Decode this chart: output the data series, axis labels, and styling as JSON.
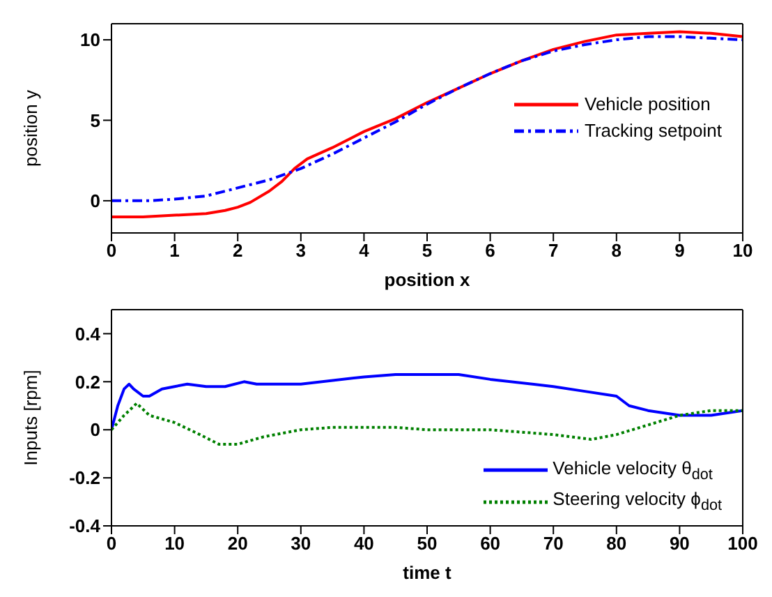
{
  "chart_data": [
    {
      "type": "line",
      "xlabel": "position x",
      "ylabel": "position y",
      "xlim": [
        0,
        10
      ],
      "xticks": [
        0,
        1,
        2,
        3,
        4,
        5,
        6,
        7,
        8,
        9,
        10
      ],
      "ylim": [
        -2,
        11
      ],
      "yticks": [
        0,
        5,
        10
      ],
      "legend": "right",
      "series": [
        {
          "name": "Vehicle position",
          "color": "#ff0000",
          "line_style": "solid",
          "x": [
            0,
            0.5,
            1,
            1.5,
            1.8,
            2,
            2.2,
            2.5,
            2.7,
            2.9,
            3.1,
            3.5,
            4,
            4.5,
            5,
            5.5,
            6,
            6.5,
            7,
            7.5,
            8,
            8.5,
            9,
            9.5,
            10
          ],
          "values": [
            -1,
            -1,
            -0.9,
            -0.8,
            -0.6,
            -0.4,
            -0.1,
            0.6,
            1.2,
            2,
            2.6,
            3.3,
            4.3,
            5.1,
            6.1,
            7,
            7.9,
            8.7,
            9.4,
            9.9,
            10.3,
            10.4,
            10.5,
            10.4,
            10.2
          ]
        },
        {
          "name": "Tracking setpoint",
          "color": "#0000ff",
          "line_style": "dashed",
          "x": [
            0,
            0.6,
            1,
            1.5,
            2,
            2.5,
            3,
            3.5,
            4,
            4.5,
            5,
            5.5,
            6,
            6.5,
            7,
            7.5,
            8,
            8.5,
            9,
            9.5,
            10
          ],
          "values": [
            0,
            0,
            0.1,
            0.3,
            0.8,
            1.3,
            2,
            2.9,
            3.9,
            4.9,
            6,
            7,
            7.9,
            8.7,
            9.3,
            9.7,
            10,
            10.2,
            10.2,
            10.1,
            10
          ]
        }
      ]
    },
    {
      "type": "line",
      "xlabel": "time t",
      "ylabel": "Inputs [rpm]",
      "xlim": [
        0,
        100
      ],
      "xticks": [
        0,
        10,
        20,
        30,
        40,
        50,
        60,
        70,
        80,
        90,
        100
      ],
      "ylim": [
        -0.4,
        0.5
      ],
      "yticks": [
        -0.4,
        -0.2,
        0,
        0.2,
        0.4
      ],
      "legend": "bottom right",
      "series": [
        {
          "name": "Vehicle velocity θ$_{dot}$",
          "color": "#0000ff",
          "line_style": "solid",
          "x": [
            0,
            1,
            2,
            2.8,
            3.5,
            5,
            6,
            8,
            10,
            12,
            15,
            18,
            21,
            23,
            30,
            40,
            45,
            55,
            60,
            70,
            75,
            80,
            82,
            85,
            90,
            95,
            100
          ],
          "values": [
            0,
            0.1,
            0.17,
            0.19,
            0.17,
            0.14,
            0.14,
            0.17,
            0.18,
            0.19,
            0.18,
            0.18,
            0.2,
            0.19,
            0.19,
            0.22,
            0.23,
            0.23,
            0.21,
            0.18,
            0.16,
            0.14,
            0.1,
            0.08,
            0.06,
            0.06,
            0.08
          ]
        },
        {
          "name": "Steering velocity ϕ$_{dot}$",
          "color": "#008000",
          "line_style": "dotted",
          "x": [
            0,
            2,
            4,
            6,
            10,
            14,
            17,
            20,
            24,
            30,
            35,
            45,
            50,
            60,
            70,
            76,
            80,
            85,
            90,
            95,
            100
          ],
          "values": [
            0,
            0.06,
            0.11,
            0.06,
            0.03,
            -0.02,
            -0.06,
            -0.06,
            -0.03,
            0,
            0.01,
            0.01,
            0,
            0,
            -0.02,
            -0.04,
            -0.02,
            0.02,
            0.06,
            0.08,
            0.08
          ]
        }
      ]
    }
  ]
}
